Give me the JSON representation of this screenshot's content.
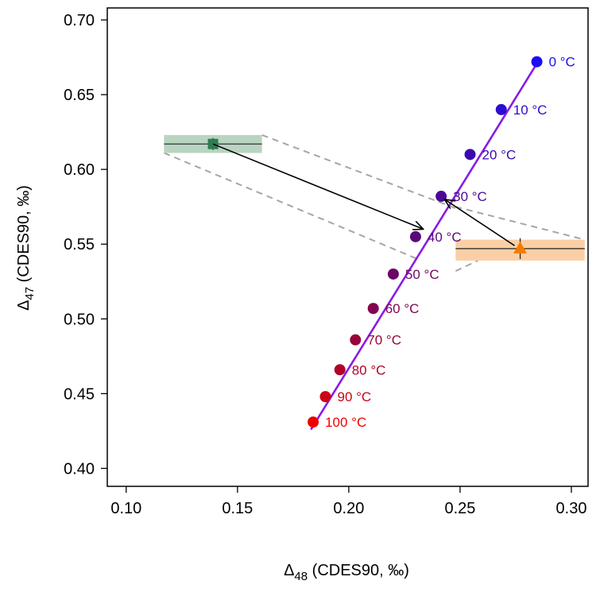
{
  "chart_data": {
    "type": "scatter",
    "title": "",
    "xlabel": {
      "symbol": "Δ",
      "sub": "48",
      "rest": " (CDES90, ‰)"
    },
    "ylabel": {
      "symbol": "Δ",
      "sub": "47",
      "rest": " (CDES90, ‰)"
    },
    "xlim": [
      0.0915,
      0.3075
    ],
    "ylim": [
      0.388,
      0.708
    ],
    "xticks": [
      0.1,
      0.15,
      0.2,
      0.25,
      0.3
    ],
    "xtick_labels": [
      "0.10",
      "0.15",
      "0.20",
      "0.25",
      "0.30"
    ],
    "yticks": [
      0.4,
      0.45,
      0.5,
      0.55,
      0.6,
      0.65,
      0.7
    ],
    "ytick_labels": [
      "0.40",
      "0.45",
      "0.50",
      "0.55",
      "0.60",
      "0.65",
      "0.70"
    ],
    "grid": false,
    "equilibrium_line": {
      "color": "#8a1be6",
      "start": [
        0.183,
        0.426
      ],
      "end": [
        0.285,
        0.672
      ]
    },
    "equilibrium_points": [
      {
        "x": 0.2845,
        "y": 0.672,
        "label": "0 °C",
        "color": "#1a0ef0"
      },
      {
        "x": 0.2685,
        "y": 0.64,
        "label": "10 °C",
        "color": "#2a0dd0"
      },
      {
        "x": 0.2545,
        "y": 0.61,
        "label": "20 °C",
        "color": "#3a0bb0"
      },
      {
        "x": 0.2415,
        "y": 0.582,
        "label": "30 °C",
        "color": "#4b0a94"
      },
      {
        "x": 0.23,
        "y": 0.555,
        "label": "40 °C",
        "color": "#5c087a"
      },
      {
        "x": 0.22,
        "y": 0.53,
        "label": "50 °C",
        "color": "#6e0665"
      },
      {
        "x": 0.211,
        "y": 0.507,
        "label": "60 °C",
        "color": "#82054f"
      },
      {
        "x": 0.203,
        "y": 0.486,
        "label": "70 °C",
        "color": "#98043a"
      },
      {
        "x": 0.196,
        "y": 0.466,
        "label": "80 °C",
        "color": "#b00328"
      },
      {
        "x": 0.1895,
        "y": 0.448,
        "label": "90 °C",
        "color": "#cc0216"
      },
      {
        "x": 0.184,
        "y": 0.431,
        "label": "100 °C",
        "color": "#ee0000"
      }
    ],
    "samples": [
      {
        "name": "green-square",
        "marker": "square",
        "color": "#2e7d4f",
        "band_color": "#b9d4c0",
        "x": 0.139,
        "y": 0.617,
        "x_range": [
          0.117,
          0.161
        ],
        "y_range": [
          0.611,
          0.623
        ],
        "y_err": [
          0.613,
          0.621
        ]
      },
      {
        "name": "orange-triangle",
        "marker": "triangle",
        "color": "#f57c00",
        "band_color": "#fbcfa6",
        "x": 0.277,
        "y": 0.547,
        "x_range": [
          0.248,
          0.306
        ],
        "y_range": [
          0.539,
          0.553
        ],
        "y_err": [
          0.54,
          0.554
        ]
      }
    ],
    "dashed_lines": [
      {
        "from": [
          0.117,
          0.611
        ],
        "to": [
          0.231,
          0.54
        ]
      },
      {
        "from": [
          0.161,
          0.623
        ],
        "to": [
          0.248,
          0.574
        ]
      },
      {
        "from": [
          0.248,
          0.575
        ],
        "to": [
          0.306,
          0.553
        ]
      },
      {
        "from": [
          0.248,
          0.532
        ],
        "to": [
          0.258,
          0.539
        ]
      }
    ],
    "arrows": [
      {
        "from": [
          0.139,
          0.617
        ],
        "to": [
          0.2335,
          0.56
        ]
      },
      {
        "from": [
          0.2745,
          0.549
        ],
        "to": [
          0.243,
          0.58
        ]
      }
    ]
  }
}
